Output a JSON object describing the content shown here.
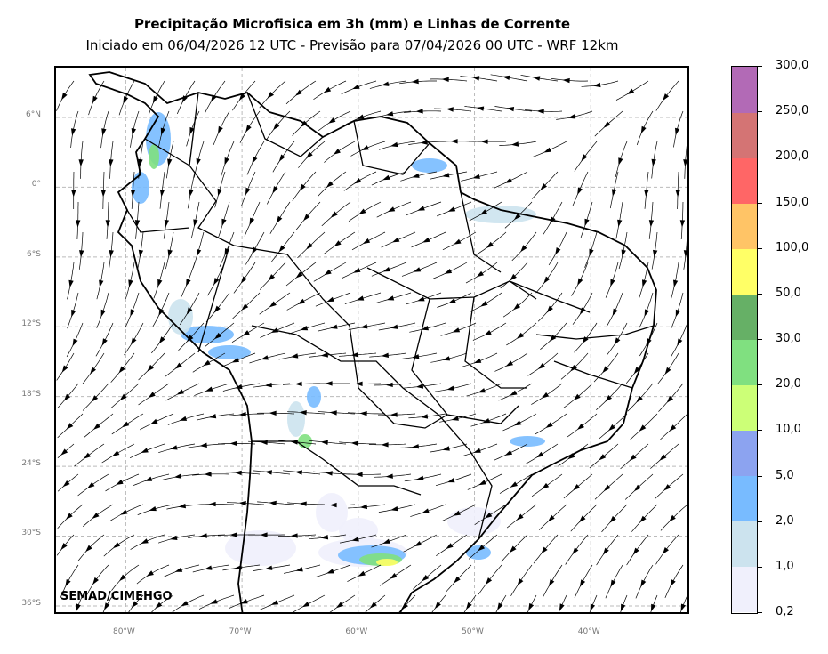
{
  "title": "Precipitação Microfisica em 3h (mm) e Linhas de Corrente",
  "subtitle": "Iniciado em 06/04/2026 12 UTC - Previsão para 07/04/2026 00 UTC - WRF 12km",
  "credit": "SEMAD/CIMEHGO",
  "map": {
    "lat_labels": [
      "6°N",
      "0°",
      "6°S",
      "12°S",
      "18°S",
      "24°S",
      "30°S",
      "36°S"
    ],
    "lon_labels": [
      "80°W",
      "70°W",
      "60°W",
      "50°W",
      "40°W"
    ],
    "grid": true,
    "gridline_style": "dashed",
    "streamline_color": "#000000",
    "coastline_color": "#000000"
  },
  "colorbar": {
    "labels": [
      "0,2",
      "1,0",
      "2,0",
      "5,0",
      "10,0",
      "20,0",
      "30,0",
      "50,0",
      "100,0",
      "150,0",
      "200,0",
      "250,0",
      "300,0"
    ],
    "colors": [
      "#f0f0fc",
      "#cce3ee",
      "#78bbff",
      "#8ca3f0",
      "#ccff77",
      "#80e080",
      "#66b066",
      "#ffff66",
      "#ffc466",
      "#ff6666",
      "#d47474",
      "#b26ab6"
    ]
  }
}
